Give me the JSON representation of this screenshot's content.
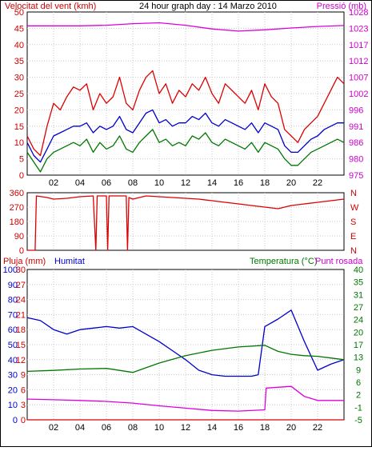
{
  "title": "24 hour graph day : 14 Marzo 2010",
  "chart_data": [
    {
      "type": "line",
      "ylabel_left": "Velocitat del vent (kmh)",
      "ylabel_right": "Pressió (mb)",
      "xticks": [
        "02",
        "04",
        "06",
        "08",
        "10",
        "12",
        "14",
        "16",
        "18",
        "20",
        "22"
      ],
      "yticks_left": [
        "0",
        "5",
        "10",
        "15",
        "20",
        "25",
        "30",
        "35",
        "40",
        "45",
        "50"
      ],
      "yticks_right": [
        "975",
        "980",
        "986",
        "991",
        "996",
        "1002",
        "1007",
        "1012",
        "1017",
        "1023",
        "1028"
      ],
      "ylim_left": [
        0,
        50
      ],
      "ylim_right": [
        975,
        1028
      ],
      "grid": true,
      "series": [
        {
          "name": "Pressió",
          "axis": "right",
          "color": "#dd00dd",
          "x": [
            0,
            2,
            4,
            6,
            8,
            10,
            12,
            14,
            16,
            18,
            20,
            22,
            24
          ],
          "y": [
            1023.5,
            1023.5,
            1023.5,
            1023.7,
            1024.2,
            1024.5,
            1023.7,
            1022.5,
            1021.8,
            1022.2,
            1022.8,
            1023.3,
            1023.6
          ]
        },
        {
          "name": "",
          "color": "#dd0000",
          "x": [
            0,
            0.5,
            1,
            1.5,
            2,
            2.5,
            3,
            3.5,
            4,
            4.5,
            5,
            5.5,
            6,
            6.5,
            7,
            7.5,
            8,
            8.5,
            9,
            9.5,
            10,
            10.5,
            11,
            11.5,
            12,
            12.5,
            13,
            13.5,
            14,
            14.5,
            15,
            15.5,
            16,
            16.5,
            17,
            17.5,
            18,
            18.5,
            19,
            19.5,
            20,
            20.5,
            21,
            21.5,
            22,
            22.5,
            23,
            23.5,
            24
          ],
          "y": [
            12,
            8,
            6,
            15,
            22,
            20,
            24,
            27,
            26,
            28,
            20,
            25,
            22,
            24,
            30,
            22,
            20,
            26,
            30,
            32,
            25,
            28,
            22,
            26,
            24,
            28,
            26,
            30,
            25,
            22,
            28,
            26,
            24,
            22,
            26,
            20,
            28,
            24,
            22,
            14,
            12,
            10,
            14,
            16,
            18,
            22,
            26,
            30,
            28
          ]
        },
        {
          "name": "",
          "color": "#0000cc",
          "x": [
            0,
            0.5,
            1,
            1.5,
            2,
            2.5,
            3,
            3.5,
            4,
            4.5,
            5,
            5.5,
            6,
            6.5,
            7,
            7.5,
            8,
            8.5,
            9,
            9.5,
            10,
            10.5,
            11,
            11.5,
            12,
            12.5,
            13,
            13.5,
            14,
            14.5,
            15,
            15.5,
            16,
            16.5,
            17,
            17.5,
            18,
            18.5,
            19,
            19.5,
            20,
            20.5,
            21,
            21.5,
            22,
            22.5,
            23,
            23.5,
            24
          ],
          "y": [
            10,
            6,
            4,
            8,
            12,
            13,
            14,
            15,
            15,
            16,
            13,
            15,
            14,
            15,
            18,
            14,
            13,
            16,
            19,
            20,
            16,
            17,
            15,
            16,
            16,
            18,
            17,
            19,
            16,
            15,
            17,
            16,
            15,
            14,
            16,
            13,
            16,
            15,
            14,
            9,
            7,
            7,
            9,
            11,
            12,
            14,
            15,
            16,
            16
          ]
        },
        {
          "name": "",
          "color": "#007700",
          "x": [
            0,
            0.5,
            1,
            1.5,
            2,
            2.5,
            3,
            3.5,
            4,
            4.5,
            5,
            5.5,
            6,
            6.5,
            7,
            7.5,
            8,
            8.5,
            9,
            9.5,
            10,
            10.5,
            11,
            11.5,
            12,
            12.5,
            13,
            13.5,
            14,
            14.5,
            15,
            15.5,
            16,
            16.5,
            17,
            17.5,
            18,
            18.5,
            19,
            19.5,
            20,
            20.5,
            21,
            21.5,
            22,
            22.5,
            23,
            23.5,
            24
          ],
          "y": [
            7,
            4,
            1,
            5,
            7,
            8,
            9,
            10,
            9,
            11,
            7,
            10,
            8,
            9,
            12,
            8,
            7,
            10,
            12,
            14,
            10,
            11,
            9,
            10,
            9,
            12,
            11,
            13,
            10,
            9,
            11,
            10,
            9,
            8,
            10,
            7,
            10,
            9,
            8,
            5,
            3,
            3,
            5,
            7,
            8,
            9,
            10,
            11,
            10
          ]
        }
      ]
    },
    {
      "type": "line",
      "yticks_left": [
        "0",
        "90",
        "180",
        "270",
        "360"
      ],
      "yticks_right": [
        "N",
        "E",
        "S",
        "W",
        "N"
      ],
      "ylim_left": [
        0,
        360
      ],
      "grid": true,
      "series": [
        {
          "name": "",
          "color": "#dd0000",
          "x": [
            0,
            0.6,
            0.7,
            1.5,
            2,
            3,
            4,
            5,
            5.2,
            5.3,
            6,
            6.1,
            6.2,
            7,
            7.5,
            7.6,
            7.7,
            8,
            9,
            10,
            11,
            12,
            13,
            14,
            15,
            16,
            17,
            18,
            19,
            20,
            21,
            22,
            23,
            24
          ],
          "y": [
            0,
            0,
            340,
            330,
            320,
            325,
            335,
            340,
            0,
            340,
            340,
            0,
            340,
            340,
            340,
            0,
            330,
            320,
            340,
            335,
            330,
            325,
            320,
            310,
            300,
            290,
            280,
            270,
            260,
            280,
            290,
            300,
            310,
            320
          ]
        }
      ]
    },
    {
      "type": "line",
      "ylabel_left": "Pluja (mm)",
      "ylabel_left2": "Humitat",
      "ylabel_right": "Temperatura (°C)",
      "ylabel_right2": "Punt rosada",
      "xticks": [
        "02",
        "04",
        "06",
        "08",
        "10",
        "12",
        "14",
        "16",
        "18",
        "20",
        "22"
      ],
      "yticks_left_rain": [
        "0",
        "3",
        "6",
        "9",
        "12",
        "15",
        "18",
        "21",
        "24",
        "27",
        "30"
      ],
      "yticks_left_humidity": [
        "0",
        "10",
        "20",
        "30",
        "40",
        "50",
        "60",
        "70",
        "80",
        "90",
        "100"
      ],
      "yticks_right": [
        "-5",
        "-1",
        "2",
        "6",
        "9",
        "13",
        "17",
        "20",
        "24",
        "27",
        "31",
        "35",
        "40"
      ],
      "ylim_left": [
        0,
        100
      ],
      "ylim_right": [
        -5,
        40
      ],
      "grid": true,
      "series": [
        {
          "name": "Pluja",
          "color": "#dd0000",
          "axis": "rain",
          "x": [
            0,
            24
          ],
          "y": [
            0,
            0
          ]
        },
        {
          "name": "Humitat",
          "color": "#0000cc",
          "axis": "humidity",
          "x": [
            0,
            1,
            2,
            3,
            4,
            5,
            6,
            7,
            8,
            9,
            10,
            11,
            12,
            13,
            14,
            15,
            16,
            17,
            17.5,
            18,
            19,
            20,
            21,
            22,
            23,
            24
          ],
          "y": [
            68,
            66,
            60,
            57,
            60,
            61,
            62,
            61,
            62,
            57,
            52,
            46,
            40,
            33,
            30,
            29,
            29,
            29,
            30,
            62,
            67,
            73,
            52,
            33,
            37,
            40
          ]
        },
        {
          "name": "Temperatura",
          "color": "#007700",
          "axis": "right",
          "x": [
            0,
            2,
            4,
            6,
            8,
            10,
            12,
            14,
            16,
            18,
            19,
            20,
            21,
            22,
            23,
            24
          ],
          "y": [
            9.5,
            9.8,
            10.2,
            10.4,
            9.2,
            12.0,
            14.2,
            15.8,
            16.8,
            17.3,
            15.5,
            14.6,
            14.2,
            14.0,
            13.5,
            13.0
          ]
        },
        {
          "name": "Punt rosada",
          "color": "#dd00dd",
          "axis": "right",
          "x": [
            0,
            2,
            4,
            6,
            8,
            10,
            12,
            14,
            16,
            18,
            18.1,
            20,
            21,
            22,
            23,
            24
          ],
          "y": [
            1.2,
            1.0,
            0.8,
            0.5,
            0.0,
            -0.8,
            -1.5,
            -2.2,
            -2.4,
            -2.0,
            4.5,
            5.0,
            2.0,
            0.8,
            0.8,
            0.8
          ]
        }
      ]
    }
  ]
}
